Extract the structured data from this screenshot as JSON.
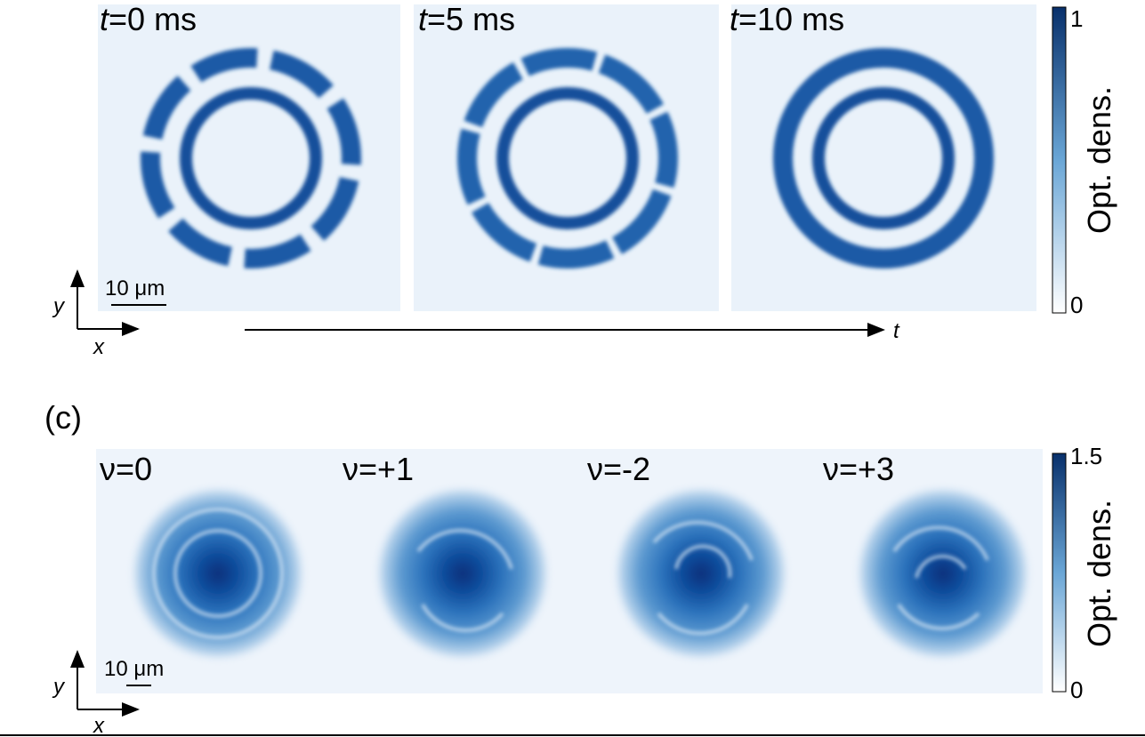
{
  "panel_b": {
    "frames": [
      {
        "symbol": "t",
        "text": "=0 ms"
      },
      {
        "symbol": "t",
        "text": "=5 ms"
      },
      {
        "symbol": "t",
        "text": "=10 ms"
      }
    ],
    "colorbar": {
      "label": "Opt. dens.",
      "top": "1",
      "bottom": "0"
    },
    "scale_bar": "10 μm",
    "axes": {
      "y": "y",
      "x": "x"
    },
    "time_axis": "t"
  },
  "panel_c": {
    "label": "(c)",
    "frames": [
      "ν=0",
      "ν=+1",
      "ν=-2",
      "ν=+3"
    ],
    "colorbar": {
      "label": "Opt. dens.",
      "top": "1.5",
      "bottom": "0"
    },
    "scale_bar": "10 μm",
    "axes": {
      "y": "y",
      "x": "x"
    }
  }
}
